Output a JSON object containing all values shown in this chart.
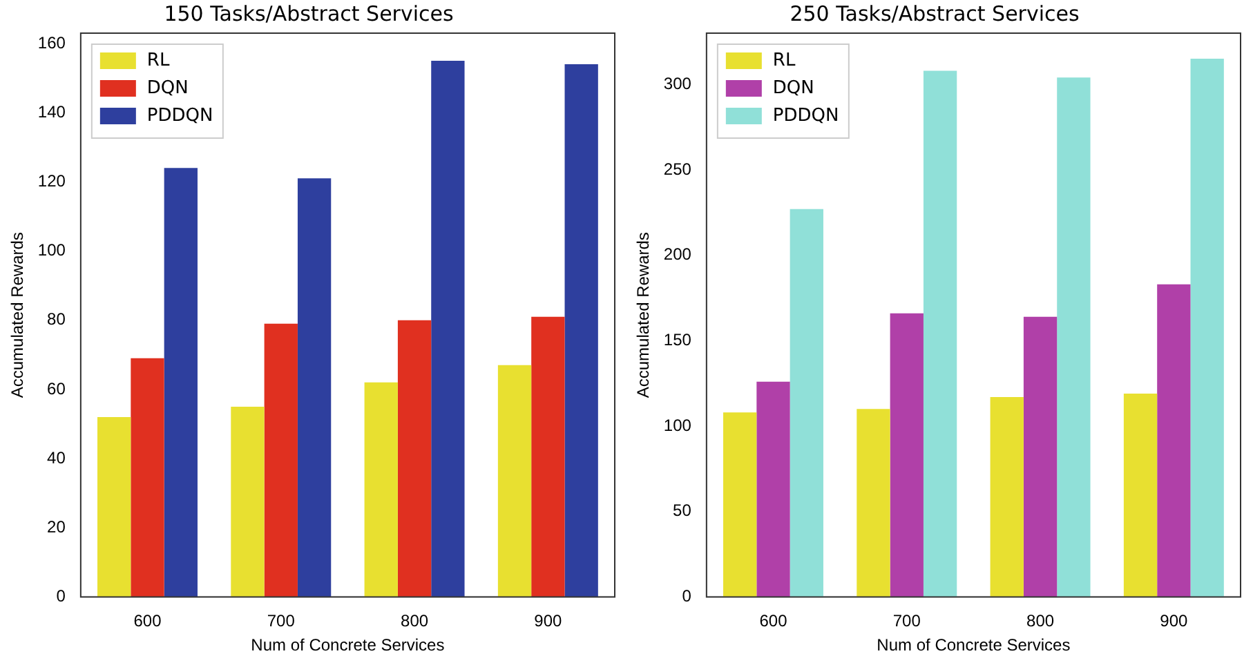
{
  "chart_data": [
    {
      "type": "bar",
      "title": "150 Tasks/Abstract Services",
      "xlabel": "Num of Concrete Services",
      "ylabel": "Accumulated Rewards",
      "categories": [
        "600",
        "700",
        "800",
        "900"
      ],
      "series": [
        {
          "name": "RL",
          "color": "#e8e030",
          "values": [
            52,
            55,
            62,
            67
          ]
        },
        {
          "name": "DQN",
          "color": "#e03020",
          "values": [
            69,
            79,
            80,
            81
          ]
        },
        {
          "name": "PDDQN",
          "color": "#2e3f9e",
          "values": [
            124,
            121,
            155,
            154
          ]
        }
      ],
      "ylim": [
        0,
        163
      ],
      "yticks": [
        0,
        20,
        40,
        60,
        80,
        100,
        120,
        140,
        160
      ],
      "grid": false,
      "legend": "top left"
    },
    {
      "type": "bar",
      "title": "250 Tasks/Abstract Services",
      "xlabel": "Num of Concrete Services",
      "ylabel": "Accumulated Rewards",
      "categories": [
        "600",
        "700",
        "800",
        "900"
      ],
      "series": [
        {
          "name": "RL",
          "color": "#e8e030",
          "values": [
            108,
            110,
            117,
            119
          ]
        },
        {
          "name": "DQN",
          "color": "#b040a8",
          "values": [
            126,
            166,
            164,
            183
          ]
        },
        {
          "name": "PDDQN",
          "color": "#90e0d8",
          "values": [
            227,
            308,
            304,
            315
          ]
        }
      ],
      "ylim": [
        0,
        330
      ],
      "yticks": [
        0,
        50,
        100,
        150,
        200,
        250,
        300
      ],
      "grid": false,
      "legend": "top left"
    }
  ]
}
